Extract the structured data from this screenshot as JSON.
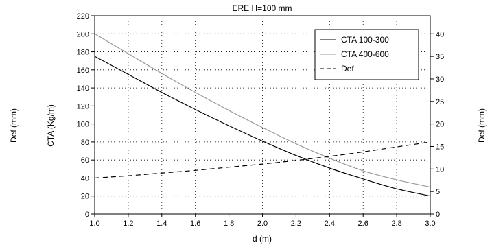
{
  "chart_data": {
    "type": "line",
    "title": "ERE H=100 mm",
    "xlabel": "d (m)",
    "ylabel_left": "CTA (Kg/m)",
    "ylabel_far_left": "Def (mm)",
    "ylabel_right": "Def (mm)",
    "xlim": [
      1.0,
      3.0
    ],
    "ylim_left": [
      0,
      220
    ],
    "ylim_right": [
      0,
      44
    ],
    "x_ticks": [
      "1.0",
      "1.2",
      "1.4",
      "1.6",
      "1.8",
      "2.0",
      "2.2",
      "2.4",
      "2.6",
      "2.8",
      "3.0"
    ],
    "y_left_ticks": [
      "0",
      "20",
      "40",
      "60",
      "80",
      "100",
      "120",
      "140",
      "160",
      "180",
      "200",
      "220"
    ],
    "y_right_ticks": [
      "0",
      "5",
      "10",
      "15",
      "20",
      "25",
      "30",
      "35",
      "40"
    ],
    "grid": true,
    "legend_position": "top-right",
    "x": [
      1.0,
      1.2,
      1.4,
      1.6,
      1.8,
      2.0,
      2.2,
      2.4,
      2.6,
      2.8,
      3.0
    ],
    "series": [
      {
        "name": "CTA 100-300",
        "axis": "left",
        "color": "#000000",
        "dash": "solid",
        "values": [
          175,
          155,
          135,
          116,
          98,
          81,
          65,
          51,
          39,
          28,
          20
        ]
      },
      {
        "name": "CTA 400-600",
        "axis": "left",
        "color": "#999999",
        "dash": "solid",
        "values": [
          200,
          178,
          156,
          135,
          115,
          96,
          78,
          62,
          48,
          38,
          30
        ]
      },
      {
        "name": "Def",
        "axis": "right",
        "color": "#000000",
        "dash": "dashed",
        "values": [
          8,
          8.5,
          9.1,
          9.7,
          10.4,
          11.1,
          11.9,
          12.8,
          13.8,
          14.9,
          16
        ]
      }
    ]
  }
}
